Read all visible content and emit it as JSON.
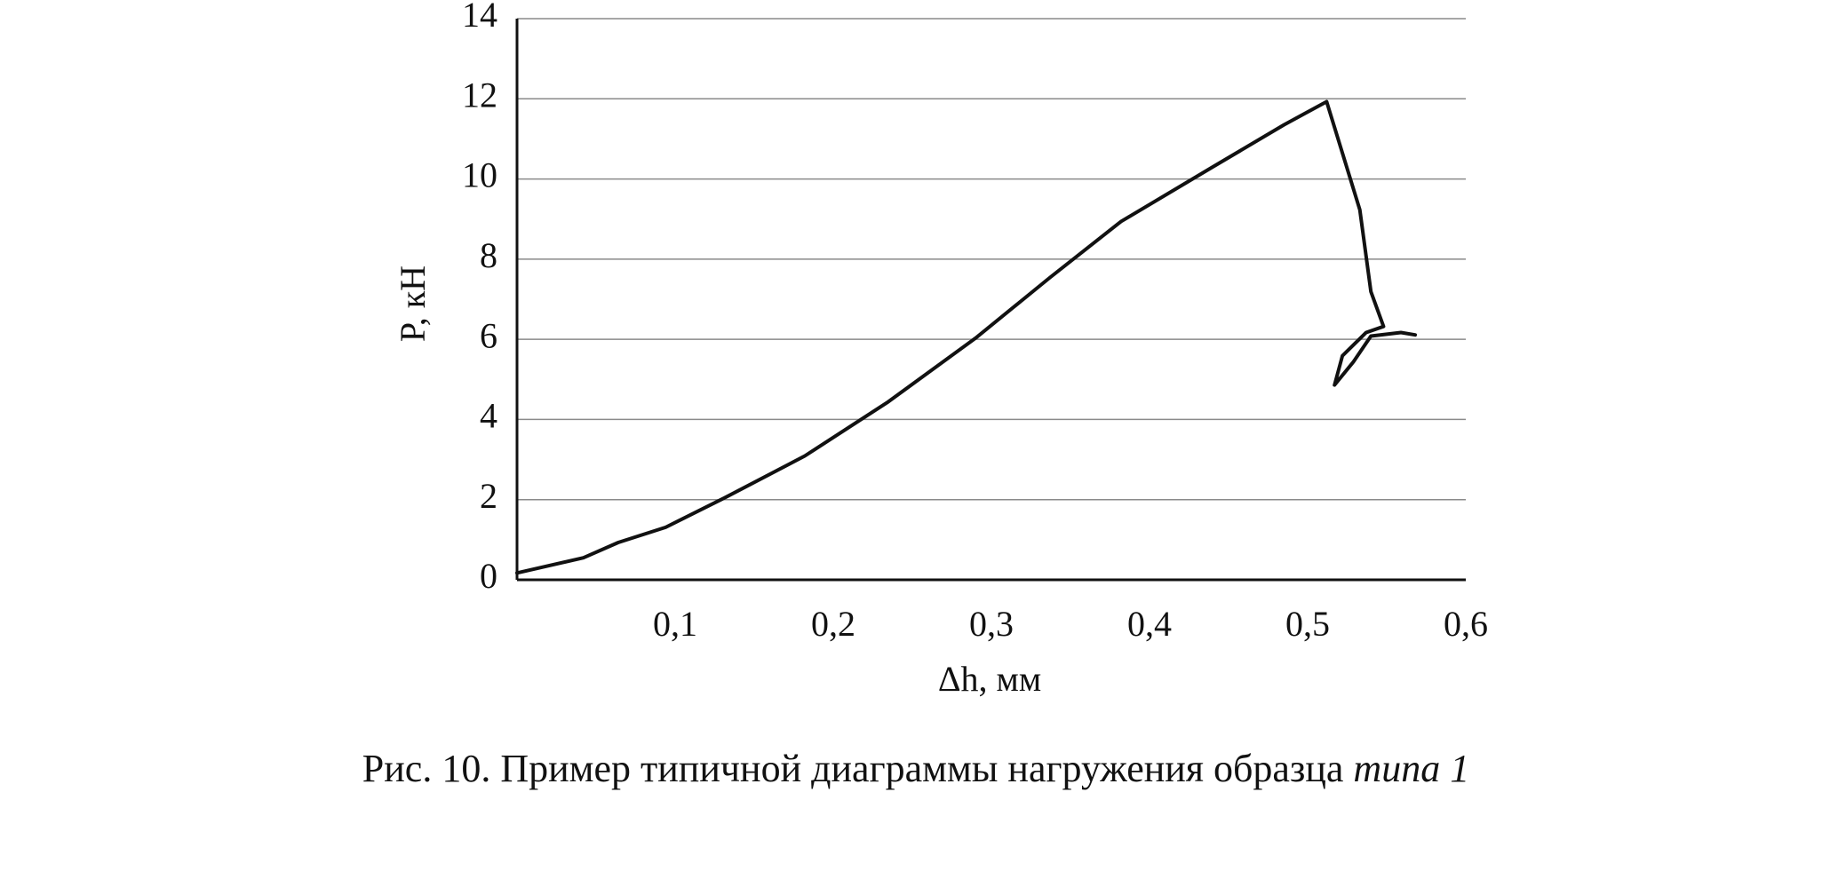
{
  "chart_data": {
    "type": "line",
    "xlabel": "Δh, мм",
    "ylabel": "P, кН",
    "caption": "Рис. 10. Пример типичной диаграммы нагружения образца",
    "caption_emphasis": "типа 1",
    "xlim": [
      0,
      0.6
    ],
    "xticks": [
      {
        "value": 0.1,
        "label": "0,1"
      },
      {
        "value": 0.2,
        "label": "0,2"
      },
      {
        "value": 0.3,
        "label": "0,3"
      },
      {
        "value": 0.4,
        "label": "0,4"
      },
      {
        "value": 0.5,
        "label": "0,5"
      },
      {
        "value": 0.6,
        "label": "0,6"
      }
    ],
    "ylim": [
      0,
      14
    ],
    "yticks": [
      0,
      2,
      4,
      6,
      8,
      10,
      12,
      14
    ],
    "grid": true,
    "series": [
      {
        "color": "#111111",
        "x": [
          0,
          0.042,
          0.064,
          0.094,
          0.131,
          0.182,
          0.234,
          0.29,
          0.337,
          0.382,
          0.44,
          0.485,
          0.512,
          0.533,
          0.54,
          0.548,
          0.537,
          0.522,
          0.517,
          0.529,
          0.54,
          0.559,
          0.568
        ],
        "values": [
          0.17,
          0.55,
          0.93,
          1.31,
          2.04,
          3.09,
          4.42,
          6.03,
          7.54,
          8.94,
          10.3,
          11.35,
          11.93,
          9.23,
          7.19,
          6.32,
          6.17,
          5.59,
          4.86,
          5.44,
          6.08,
          6.17,
          6.11
        ]
      }
    ]
  }
}
